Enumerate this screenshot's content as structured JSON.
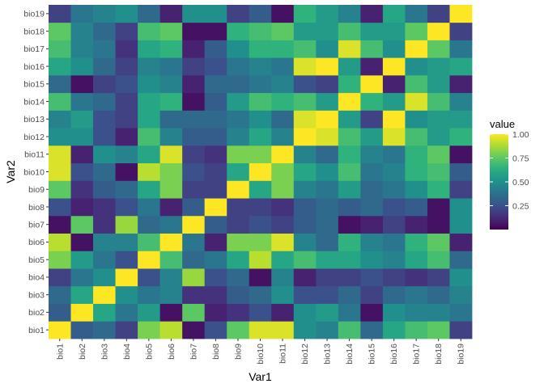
{
  "chart_data": {
    "type": "heatmap",
    "title": "",
    "xlabel": "Var1",
    "ylabel": "Var2",
    "x_categories": [
      "bio1",
      "bio2",
      "bio3",
      "bio4",
      "bio5",
      "bio6",
      "bio7",
      "bio8",
      "bio9",
      "bio10",
      "bio11",
      "bio12",
      "bio13",
      "bio14",
      "bio15",
      "bio16",
      "bio17",
      "bio18",
      "bio19"
    ],
    "y_categories": [
      "bio1",
      "bio2",
      "bio3",
      "bio4",
      "bio5",
      "bio6",
      "bio7",
      "bio8",
      "bio9",
      "bio10",
      "bio11",
      "bio12",
      "bio13",
      "bio14",
      "bio15",
      "bio16",
      "bio17",
      "bio18",
      "bio19"
    ],
    "values": [
      [
        1.0,
        0.3,
        0.35,
        0.2,
        0.8,
        0.9,
        0.05,
        0.25,
        0.75,
        0.95,
        0.95,
        0.5,
        0.45,
        0.7,
        0.35,
        0.6,
        0.7,
        0.75,
        0.2
      ],
      [
        0.3,
        1.0,
        0.6,
        0.4,
        0.55,
        0.05,
        0.75,
        0.1,
        0.15,
        0.25,
        0.1,
        0.5,
        0.55,
        0.4,
        0.05,
        0.5,
        0.45,
        0.45,
        0.4
      ],
      [
        0.35,
        0.6,
        1.0,
        0.5,
        0.4,
        0.45,
        0.15,
        0.15,
        0.3,
        0.35,
        0.5,
        0.25,
        0.25,
        0.35,
        0.2,
        0.35,
        0.4,
        0.35,
        0.45
      ],
      [
        0.2,
        0.4,
        0.5,
        1.0,
        0.25,
        0.45,
        0.85,
        0.25,
        0.35,
        0.05,
        0.45,
        0.1,
        0.2,
        0.2,
        0.25,
        0.2,
        0.15,
        0.2,
        0.5
      ],
      [
        0.8,
        0.55,
        0.4,
        0.25,
        1.0,
        0.7,
        0.35,
        0.4,
        0.6,
        0.9,
        0.6,
        0.7,
        0.6,
        0.6,
        0.5,
        0.45,
        0.6,
        0.7,
        0.35
      ],
      [
        0.9,
        0.05,
        0.45,
        0.45,
        0.7,
        1.0,
        0.4,
        0.1,
        0.8,
        0.8,
        0.95,
        0.45,
        0.35,
        0.65,
        0.45,
        0.4,
        0.65,
        0.75,
        0.1
      ],
      [
        0.05,
        0.75,
        0.15,
        0.85,
        0.35,
        0.4,
        1.0,
        0.3,
        0.2,
        0.25,
        0.2,
        0.3,
        0.35,
        0.05,
        0.1,
        0.2,
        0.1,
        0.05,
        0.5
      ],
      [
        0.25,
        0.1,
        0.15,
        0.25,
        0.4,
        0.1,
        0.3,
        1.0,
        0.2,
        0.2,
        0.15,
        0.3,
        0.35,
        0.3,
        0.35,
        0.25,
        0.3,
        0.05,
        0.5
      ],
      [
        0.75,
        0.15,
        0.3,
        0.35,
        0.6,
        0.8,
        0.2,
        0.2,
        1.0,
        0.6,
        0.8,
        0.45,
        0.4,
        0.55,
        0.35,
        0.4,
        0.5,
        0.65,
        0.2
      ],
      [
        0.95,
        0.25,
        0.35,
        0.05,
        0.9,
        0.8,
        0.25,
        0.2,
        0.6,
        1.0,
        0.8,
        0.6,
        0.5,
        0.7,
        0.4,
        0.45,
        0.65,
        0.7,
        0.3
      ],
      [
        0.95,
        0.1,
        0.5,
        0.45,
        0.6,
        0.95,
        0.2,
        0.15,
        0.8,
        0.8,
        1.0,
        0.45,
        0.35,
        0.65,
        0.45,
        0.4,
        0.65,
        0.75,
        0.05
      ],
      [
        0.5,
        0.5,
        0.25,
        0.1,
        0.7,
        0.45,
        0.3,
        0.3,
        0.45,
        0.6,
        0.45,
        1.0,
        0.95,
        0.7,
        0.55,
        0.95,
        0.7,
        0.55,
        0.65
      ],
      [
        0.45,
        0.55,
        0.25,
        0.2,
        0.6,
        0.35,
        0.35,
        0.35,
        0.4,
        0.5,
        0.35,
        0.95,
        1.0,
        0.55,
        0.2,
        1.0,
        0.5,
        0.55,
        0.55
      ],
      [
        0.7,
        0.4,
        0.35,
        0.2,
        0.6,
        0.65,
        0.05,
        0.3,
        0.55,
        0.7,
        0.65,
        0.7,
        0.55,
        1.0,
        0.65,
        0.55,
        0.95,
        0.7,
        0.45
      ],
      [
        0.35,
        0.05,
        0.2,
        0.25,
        0.5,
        0.45,
        0.1,
        0.35,
        0.35,
        0.4,
        0.45,
        0.25,
        0.2,
        0.65,
        1.0,
        0.1,
        0.7,
        0.55,
        0.1
      ],
      [
        0.6,
        0.5,
        0.35,
        0.2,
        0.45,
        0.4,
        0.2,
        0.25,
        0.4,
        0.45,
        0.4,
        0.95,
        1.0,
        0.55,
        0.1,
        1.0,
        0.5,
        0.55,
        0.6
      ],
      [
        0.7,
        0.45,
        0.4,
        0.15,
        0.6,
        0.65,
        0.1,
        0.3,
        0.5,
        0.65,
        0.65,
        0.7,
        0.5,
        0.95,
        0.7,
        0.5,
        1.0,
        0.75,
        0.4
      ],
      [
        0.75,
        0.45,
        0.35,
        0.2,
        0.7,
        0.75,
        0.05,
        0.05,
        0.65,
        0.7,
        0.75,
        0.55,
        0.55,
        0.7,
        0.55,
        0.55,
        0.75,
        1.0,
        0.2
      ],
      [
        0.2,
        0.4,
        0.45,
        0.5,
        0.35,
        0.1,
        0.5,
        0.5,
        0.2,
        0.3,
        0.05,
        0.65,
        0.55,
        0.45,
        0.1,
        0.6,
        0.4,
        0.2,
        1.0
      ]
    ],
    "value_range": [
      0,
      1
    ],
    "legend": {
      "title": "value",
      "ticks": [
        "0.25",
        "0.50",
        "0.75",
        "1.00"
      ],
      "tick_values": [
        0.25,
        0.5,
        0.75,
        1.0
      ],
      "placement": "right"
    },
    "colormap": "viridis",
    "panel_background": "#ebebeb",
    "grid": false
  }
}
